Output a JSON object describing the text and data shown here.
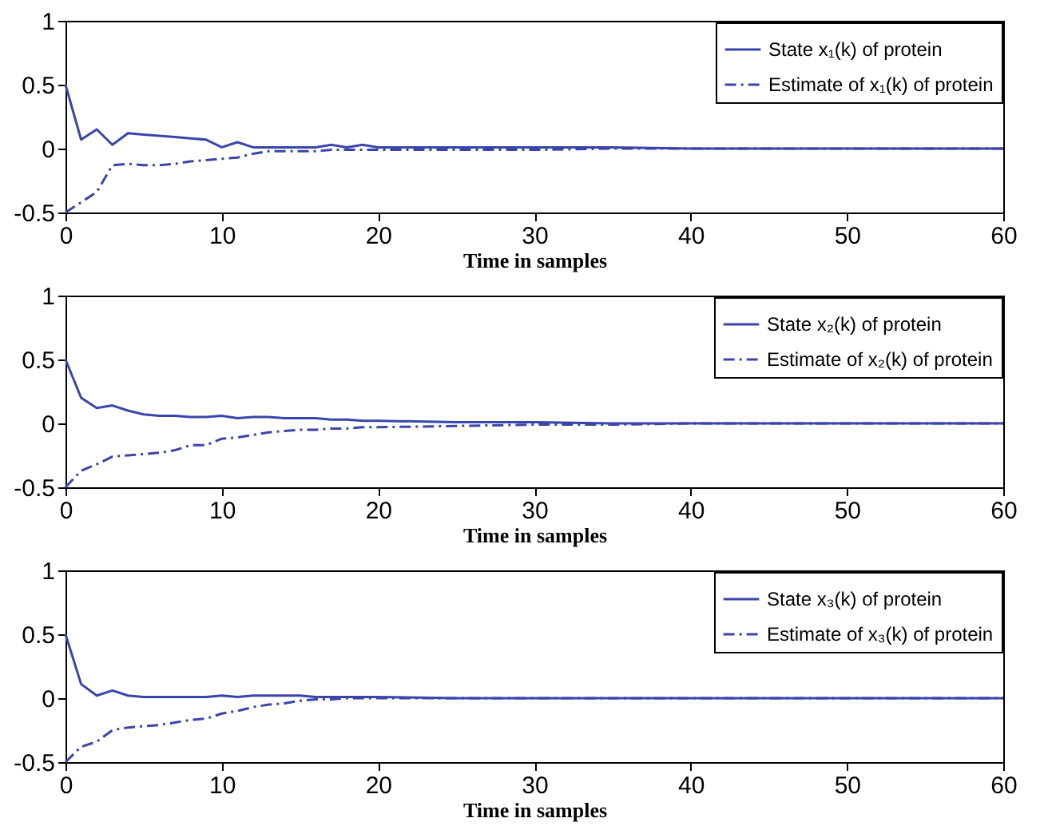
{
  "chart_data": [
    {
      "type": "line",
      "xlabel": "Time in samples",
      "x": [
        0,
        1,
        2,
        3,
        4,
        5,
        6,
        7,
        8,
        9,
        10,
        11,
        12,
        13,
        14,
        15,
        16,
        17,
        18,
        19,
        20,
        25,
        30,
        35,
        40,
        45,
        50,
        55,
        60
      ],
      "xlim": [
        0,
        60
      ],
      "xticks": [
        0,
        10,
        20,
        30,
        40,
        50,
        60
      ],
      "ylim": [
        -0.5,
        1
      ],
      "yticks": [
        -0.5,
        0,
        0.5,
        1
      ],
      "legend": "top right",
      "marker": "none",
      "series": [
        {
          "name": "State x₁(k) of protein",
          "color": "#3a45ac",
          "line_style": "solid",
          "values": [
            0.5,
            0.07,
            0.15,
            0.03,
            0.12,
            0.11,
            0.1,
            0.09,
            0.08,
            0.07,
            0.01,
            0.05,
            0.01,
            0.01,
            0.01,
            0.01,
            0.01,
            0.03,
            0.01,
            0.03,
            0.01,
            0.01,
            0.01,
            0.01,
            0,
            0,
            0,
            0,
            0
          ]
        },
        {
          "name": "Estimate of x₁(k) of protein",
          "color": "#3a45ac",
          "line_style": "dashed",
          "values": [
            -0.5,
            -0.42,
            -0.34,
            -0.13,
            -0.12,
            -0.13,
            -0.13,
            -0.12,
            -0.1,
            -0.09,
            -0.08,
            -0.07,
            -0.04,
            -0.02,
            -0.02,
            -0.02,
            -0.02,
            -0.01,
            -0.01,
            -0.01,
            -0.01,
            -0.01,
            -0.01,
            0,
            0,
            0,
            0,
            0,
            0
          ]
        }
      ]
    },
    {
      "type": "line",
      "xlabel": "Time in samples",
      "x": [
        0,
        1,
        2,
        3,
        4,
        5,
        6,
        7,
        8,
        9,
        10,
        11,
        12,
        13,
        14,
        15,
        16,
        17,
        18,
        19,
        20,
        25,
        30,
        35,
        40,
        45,
        50,
        55,
        60
      ],
      "xlim": [
        0,
        60
      ],
      "xticks": [
        0,
        10,
        20,
        30,
        40,
        50,
        60
      ],
      "ylim": [
        -0.5,
        1
      ],
      "yticks": [
        -0.5,
        0,
        0.5,
        1
      ],
      "legend": "top right",
      "marker": "none",
      "series": [
        {
          "name": "State x₂(k) of protein",
          "color": "#3a45ac",
          "line_style": "solid",
          "values": [
            0.5,
            0.2,
            0.12,
            0.14,
            0.1,
            0.07,
            0.06,
            0.06,
            0.05,
            0.05,
            0.06,
            0.04,
            0.05,
            0.05,
            0.04,
            0.04,
            0.04,
            0.03,
            0.03,
            0.02,
            0.02,
            0.01,
            0.01,
            0,
            0,
            0,
            0,
            0,
            0
          ]
        },
        {
          "name": "Estimate of x₂(k) of protein",
          "color": "#3a45ac",
          "line_style": "dashed",
          "values": [
            -0.5,
            -0.37,
            -0.32,
            -0.26,
            -0.25,
            -0.24,
            -0.23,
            -0.21,
            -0.17,
            -0.17,
            -0.12,
            -0.11,
            -0.09,
            -0.07,
            -0.06,
            -0.05,
            -0.05,
            -0.04,
            -0.04,
            -0.03,
            -0.03,
            -0.02,
            -0.01,
            -0.01,
            0,
            0,
            0,
            0,
            0
          ]
        }
      ]
    },
    {
      "type": "line",
      "xlabel": "Time in samples",
      "x": [
        0,
        1,
        2,
        3,
        4,
        5,
        6,
        7,
        8,
        9,
        10,
        11,
        12,
        13,
        14,
        15,
        16,
        17,
        18,
        19,
        20,
        25,
        30,
        35,
        40,
        45,
        50,
        55,
        60
      ],
      "xlim": [
        0,
        60
      ],
      "xticks": [
        0,
        10,
        20,
        30,
        40,
        50,
        60
      ],
      "ylim": [
        -0.5,
        1
      ],
      "yticks": [
        -0.5,
        0,
        0.5,
        1
      ],
      "legend": "top right",
      "marker": "none",
      "series": [
        {
          "name": "State x₃(k) of protein",
          "color": "#3a45ac",
          "line_style": "solid",
          "values": [
            0.5,
            0.11,
            0.02,
            0.06,
            0.02,
            0.01,
            0.01,
            0.01,
            0.01,
            0.01,
            0.02,
            0.01,
            0.02,
            0.02,
            0.02,
            0.02,
            0.01,
            0.01,
            0.01,
            0.01,
            0.01,
            0,
            0,
            0,
            0,
            0,
            0,
            0,
            0
          ]
        },
        {
          "name": "Estimate of x₃(k) of protein",
          "color": "#3a45ac",
          "line_style": "dashed",
          "values": [
            -0.5,
            -0.38,
            -0.34,
            -0.25,
            -0.23,
            -0.22,
            -0.21,
            -0.19,
            -0.17,
            -0.16,
            -0.12,
            -0.1,
            -0.07,
            -0.05,
            -0.04,
            -0.02,
            -0.01,
            -0.01,
            0,
            0,
            0,
            0,
            0,
            0,
            0,
            0,
            0,
            0,
            0
          ]
        }
      ]
    }
  ]
}
